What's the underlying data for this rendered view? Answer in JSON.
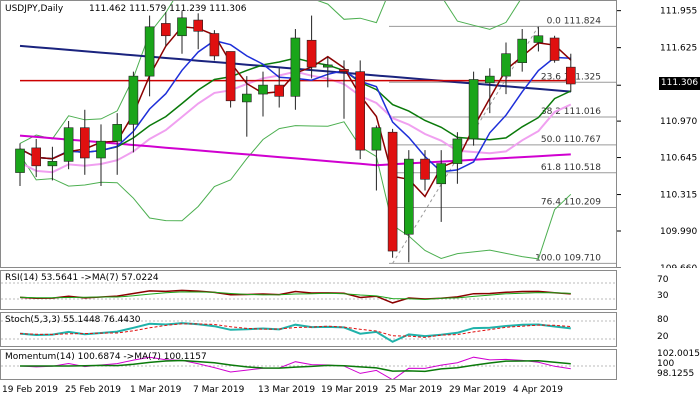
{
  "main": {
    "header": {
      "symbol_timeframe": "USDJPY,Daily",
      "ohlc": "111.462 111.579 111.239 111.306"
    },
    "price_axis": [
      "111.955",
      "111.625",
      "111.290",
      "110.970",
      "110.645",
      "110.315",
      "109.990",
      "109.660"
    ],
    "current_price": "111.306",
    "fibonacci_levels": [
      {
        "label": "0.0 111.824",
        "value": 111.824
      },
      {
        "label": "23.6 111.325",
        "value": 111.325
      },
      {
        "label": "38.2 111.016",
        "value": 111.016
      },
      {
        "label": "50.0 110.767",
        "value": 110.767
      },
      {
        "label": "61.8 110.518",
        "value": 110.518
      },
      {
        "label": "76.4 110.209",
        "value": 110.209
      },
      {
        "label": "100.0 109.710",
        "value": 109.71
      }
    ]
  },
  "rsi": {
    "label": "RSI(14) 53.5641 ->MA(7) 57.0224",
    "levels": [
      "70",
      "30"
    ]
  },
  "stoch": {
    "label": "Stoch(5,3,3) 55.1448 76.4430",
    "levels": [
      "80",
      "20"
    ]
  },
  "momentum": {
    "label": "Momentum(14) 100.6874 ->MA(7) 100.1157",
    "levels": [
      "102.0015",
      "100",
      "98.1255"
    ]
  },
  "dates": [
    "19 Feb 2019",
    "25 Feb 2019",
    "1 Mar 2019",
    "7 Mar 2019",
    "13 Mar 2019",
    "19 Mar 2019",
    "25 Mar 2019",
    "29 Mar 2019",
    "4 Apr 2019"
  ],
  "colors": {
    "bull": "#1aa51a",
    "bear": "#e01010",
    "ma_red": "#cc0000",
    "ma_navy": "#1a237e",
    "ma_magenta": "#d000d0",
    "ma_pink": "#f0a0f0",
    "ma_green": "#0a7a0a",
    "ma_blue": "#1e2fd9",
    "boll": "#4caf50"
  },
  "chart_data": {
    "type": "candlestick",
    "candles": [
      {
        "o": 110.52,
        "h": 110.78,
        "l": 110.4,
        "c": 110.73
      },
      {
        "o": 110.74,
        "h": 110.82,
        "l": 110.48,
        "c": 110.58
      },
      {
        "o": 110.58,
        "h": 110.75,
        "l": 110.45,
        "c": 110.62
      },
      {
        "o": 110.62,
        "h": 110.98,
        "l": 110.55,
        "c": 110.92
      },
      {
        "o": 110.92,
        "h": 111.08,
        "l": 110.5,
        "c": 110.65
      },
      {
        "o": 110.65,
        "h": 110.95,
        "l": 110.4,
        "c": 110.8
      },
      {
        "o": 110.8,
        "h": 111.05,
        "l": 110.5,
        "c": 110.95
      },
      {
        "o": 110.95,
        "h": 111.42,
        "l": 110.7,
        "c": 111.38
      },
      {
        "o": 111.38,
        "h": 111.92,
        "l": 111.2,
        "c": 111.82
      },
      {
        "o": 111.85,
        "h": 111.95,
        "l": 111.65,
        "c": 111.74
      },
      {
        "o": 111.74,
        "h": 111.96,
        "l": 111.58,
        "c": 111.9
      },
      {
        "o": 111.88,
        "h": 111.94,
        "l": 111.62,
        "c": 111.78
      },
      {
        "o": 111.76,
        "h": 111.79,
        "l": 111.52,
        "c": 111.56
      },
      {
        "o": 111.6,
        "h": 111.6,
        "l": 111.1,
        "c": 111.16
      },
      {
        "o": 111.15,
        "h": 111.38,
        "l": 110.84,
        "c": 111.22
      },
      {
        "o": 111.22,
        "h": 111.42,
        "l": 111.02,
        "c": 111.3
      },
      {
        "o": 111.3,
        "h": 111.45,
        "l": 111.1,
        "c": 111.2
      },
      {
        "o": 111.2,
        "h": 111.8,
        "l": 111.08,
        "c": 111.72
      },
      {
        "o": 111.7,
        "h": 111.92,
        "l": 111.36,
        "c": 111.46
      },
      {
        "o": 111.46,
        "h": 111.55,
        "l": 111.28,
        "c": 111.48
      },
      {
        "o": 111.44,
        "h": 111.52,
        "l": 111.0,
        "c": 111.42
      },
      {
        "o": 111.42,
        "h": 111.52,
        "l": 110.64,
        "c": 110.72
      },
      {
        "o": 110.72,
        "h": 110.94,
        "l": 110.36,
        "c": 110.92
      },
      {
        "o": 110.88,
        "h": 110.91,
        "l": 109.76,
        "c": 109.82
      },
      {
        "o": 109.97,
        "h": 110.72,
        "l": 109.72,
        "c": 110.64
      },
      {
        "o": 110.64,
        "h": 110.72,
        "l": 110.36,
        "c": 110.46
      },
      {
        "o": 110.42,
        "h": 110.72,
        "l": 110.08,
        "c": 110.6
      },
      {
        "o": 110.6,
        "h": 110.88,
        "l": 110.42,
        "c": 110.82
      },
      {
        "o": 110.82,
        "h": 111.42,
        "l": 110.76,
        "c": 111.35
      },
      {
        "o": 111.32,
        "h": 111.45,
        "l": 111.05,
        "c": 111.38
      },
      {
        "o": 111.38,
        "h": 111.68,
        "l": 111.22,
        "c": 111.58
      },
      {
        "o": 111.5,
        "h": 111.8,
        "l": 111.42,
        "c": 111.71
      },
      {
        "o": 111.68,
        "h": 111.82,
        "l": 111.6,
        "c": 111.74
      },
      {
        "o": 111.72,
        "h": 111.74,
        "l": 111.5,
        "c": 111.52
      },
      {
        "o": 111.46,
        "h": 111.58,
        "l": 111.24,
        "c": 111.31
      }
    ],
    "ylim": [
      109.66,
      112.05
    ]
  }
}
